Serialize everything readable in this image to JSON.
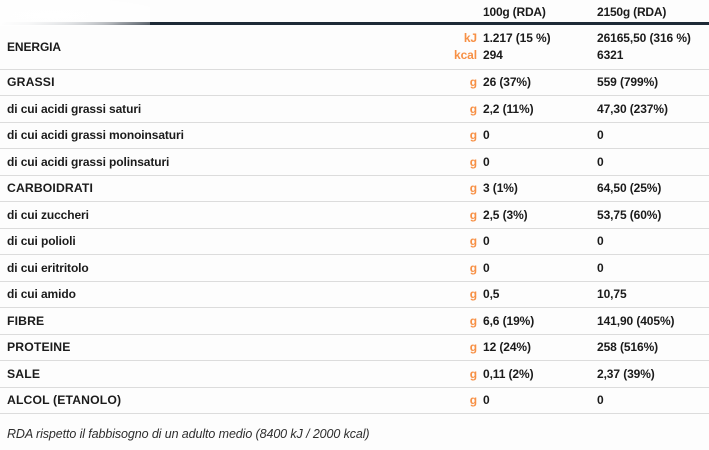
{
  "colors": {
    "accent_orange": "#F79045",
    "header_rule_navy": "#1E2A36",
    "row_separator": "#DCDCDC",
    "text": "#1B1B1B"
  },
  "header": {
    "col_100g_label": "100g (RDA)",
    "col_2150g_label": "2150g (RDA)"
  },
  "energy": {
    "label": "ENERGIA",
    "unit_line1": "kJ",
    "unit_line2": "kcal",
    "v100_line1": "1.217 (15 %)",
    "v100_line2": "294",
    "v2150_line1": "26165,50 (316 %)",
    "v2150_line2": "6321"
  },
  "rows": [
    {
      "label": "GRASSI",
      "type": "category",
      "unit": "g",
      "v100": "26 (37%)",
      "v2150": "559 (799%)"
    },
    {
      "label": "di cui acidi grassi saturi",
      "type": "sub",
      "unit": "g",
      "v100": "2,2 (11%)",
      "v2150": "47,30  (237%)"
    },
    {
      "label": "di cui acidi grassi monoinsaturi",
      "type": "sub",
      "unit": "g",
      "v100": "0",
      "v2150": "0"
    },
    {
      "label": "di cui acidi grassi polinsaturi",
      "type": "sub",
      "unit": "g",
      "v100": "0",
      "v2150": "0"
    },
    {
      "label": "CARBOIDRATI",
      "type": "category",
      "unit": "g",
      "v100": "3 (1%)",
      "v2150": "64,50 (25%)"
    },
    {
      "label": "di cui zuccheri",
      "type": "sub",
      "unit": "g",
      "v100": "2,5 (3%)",
      "v2150": "53,75 (60%)"
    },
    {
      "label": "di cui polioli",
      "type": "sub",
      "unit": "g",
      "v100": "0",
      "v2150": "0"
    },
    {
      "label": "di cui eritritolo",
      "type": "sub",
      "unit": "g",
      "v100": "0",
      "v2150": "0"
    },
    {
      "label": "di cui amido",
      "type": "sub",
      "unit": "g",
      "v100": "0,5",
      "v2150": "10,75"
    },
    {
      "label": "FIBRE",
      "type": "category",
      "unit": "g",
      "v100": "6,6 (19%)",
      "v2150": "141,90 (405%)"
    },
    {
      "label": "PROTEINE",
      "type": "category",
      "unit": "g",
      "v100": "12 (24%)",
      "v2150": "258 (516%)"
    },
    {
      "label": "SALE",
      "type": "category",
      "unit": "g",
      "v100": "0,11 (2%)",
      "v2150": "2,37 (39%)"
    },
    {
      "label": "ALCOL (ETANOLO)",
      "type": "category",
      "unit": "g",
      "v100": "0",
      "v2150": "0"
    }
  ],
  "footer": {
    "note": "RDA rispetto il fabbisogno di un adulto medio (8400 kJ / 2000 kcal)"
  }
}
